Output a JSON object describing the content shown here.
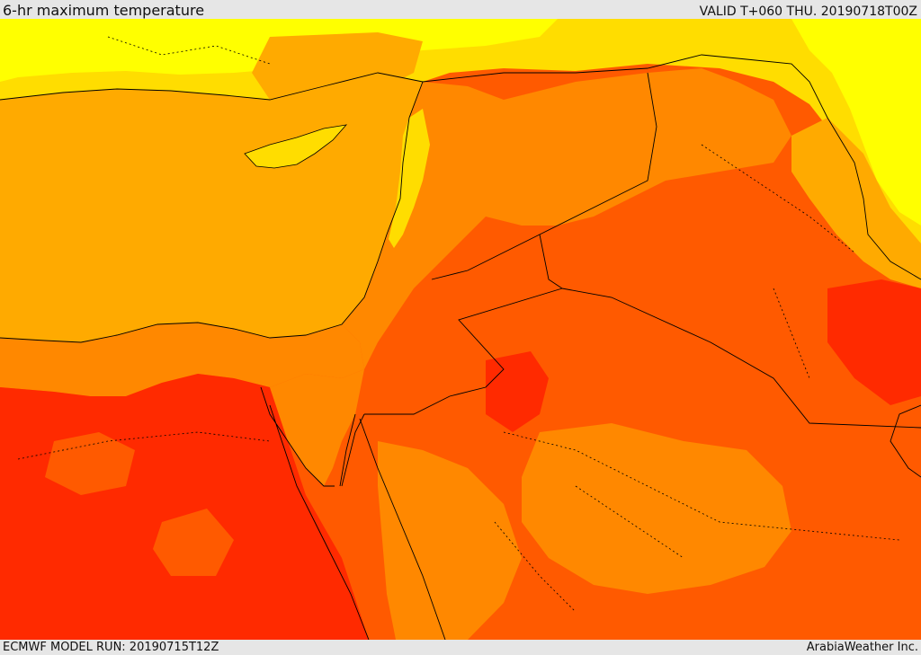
{
  "header": {
    "title": "6-hr maximum temperature",
    "valid": "VALID T+060 THU. 20190718T00Z"
  },
  "footer": {
    "model_run": "ECMWF MODEL RUN: 20190715T12Z",
    "credit": "ArabiaWeather Inc."
  },
  "palette": {
    "yellow": "#ffff00",
    "light_orange": "#ffdd00",
    "sea_orange": "#ffaa00",
    "orange": "#ff8800",
    "dark_orange": "#ff5a00",
    "red_orange": "#ff2a00",
    "border_line": "#000000"
  }
}
